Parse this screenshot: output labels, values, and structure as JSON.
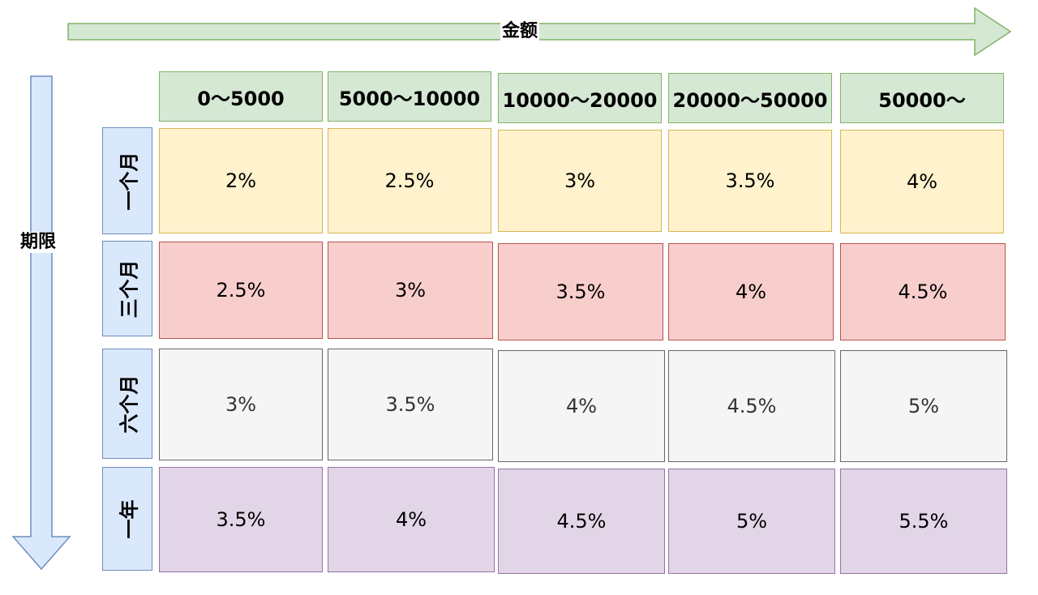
{
  "axes": {
    "amount_label": "金额",
    "term_label": "期限"
  },
  "columns": [
    "0～5000",
    "5000～10000",
    "10000～20000",
    "20000～50000",
    "50000～"
  ],
  "rows": [
    {
      "label": "一个月",
      "fill": "#fff2cc",
      "stroke": "#d6b656",
      "values": [
        "2%",
        "2.5%",
        "3%",
        "3.5%",
        "4%"
      ]
    },
    {
      "label": "三个月",
      "fill": "#f8cecc",
      "stroke": "#b85450",
      "values": [
        "2.5%",
        "3%",
        "3.5%",
        "4%",
        "4.5%"
      ]
    },
    {
      "label": "六个月",
      "fill": "#f5f5f5",
      "stroke": "#666666",
      "values": [
        "3%",
        "3.5%",
        "4%",
        "4.5%",
        "5%"
      ]
    },
    {
      "label": "一年",
      "fill": "#e1d5e7",
      "stroke": "#9673a6",
      "values": [
        "3.5%",
        "4%",
        "4.5%",
        "5%",
        "5.5%"
      ]
    }
  ],
  "colors": {
    "header_fill": "#d5e8d4",
    "header_stroke": "#82b366",
    "row_header_fill": "#dae8fc",
    "row_header_stroke": "#6c8ebf"
  }
}
